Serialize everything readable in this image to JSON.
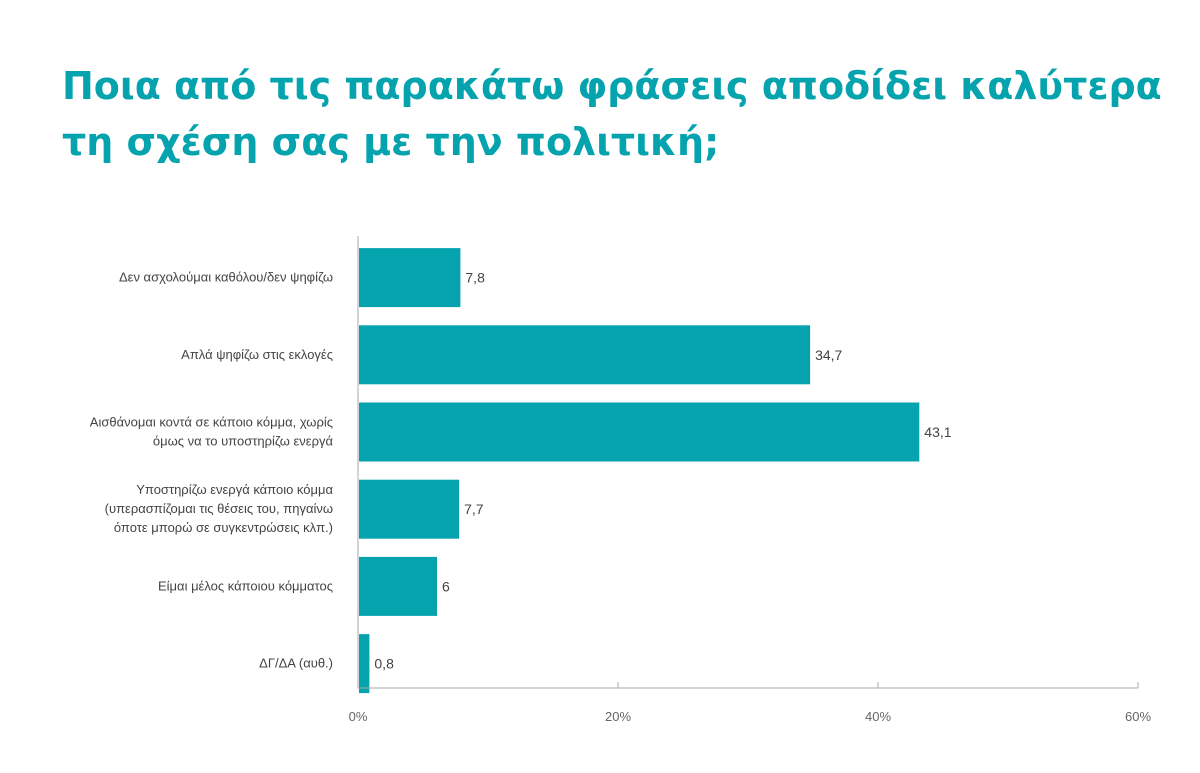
{
  "chart_data": {
    "type": "bar",
    "orientation": "horizontal",
    "title": "Ποια από τις παρακάτω φράσεις αποδίδει καλύτερα τη σχέση σας με την πολιτική;",
    "categories": [
      [
        "Δεν ασχολούμαι καθόλου/δεν ψηφίζω"
      ],
      [
        "Απλά ψηφίζω στις εκλογές"
      ],
      [
        "Αισθάνομαι κοντά σε κάποιο κόμμα, χωρίς",
        "όμως να το υποστηρίζω ενεργά"
      ],
      [
        "Υποστηρίζω ενεργά κάποιο κόμμα",
        "(υπερασπίζομαι τις θέσεις του, πηγαίνω",
        "όποτε μπορώ σε συγκεντρώσεις κλπ.)"
      ],
      [
        "Είμαι μέλος κάποιου κόμματος"
      ],
      [
        "ΔΓ/ΔΑ (αυθ.)"
      ]
    ],
    "values": [
      7.8,
      34.7,
      43.1,
      7.7,
      6,
      0.8
    ],
    "value_labels": [
      "7,8",
      "34,7",
      "43,1",
      "7,7",
      "6",
      "0,8"
    ],
    "xlim": [
      0,
      60
    ],
    "xticks": [
      0,
      20,
      40,
      60
    ],
    "xtick_labels": [
      "0%",
      "20%",
      "40%",
      "60%"
    ],
    "bar_color": "#05a3ad",
    "title_color": "#05a3ad",
    "grid": false,
    "legend": "none"
  }
}
